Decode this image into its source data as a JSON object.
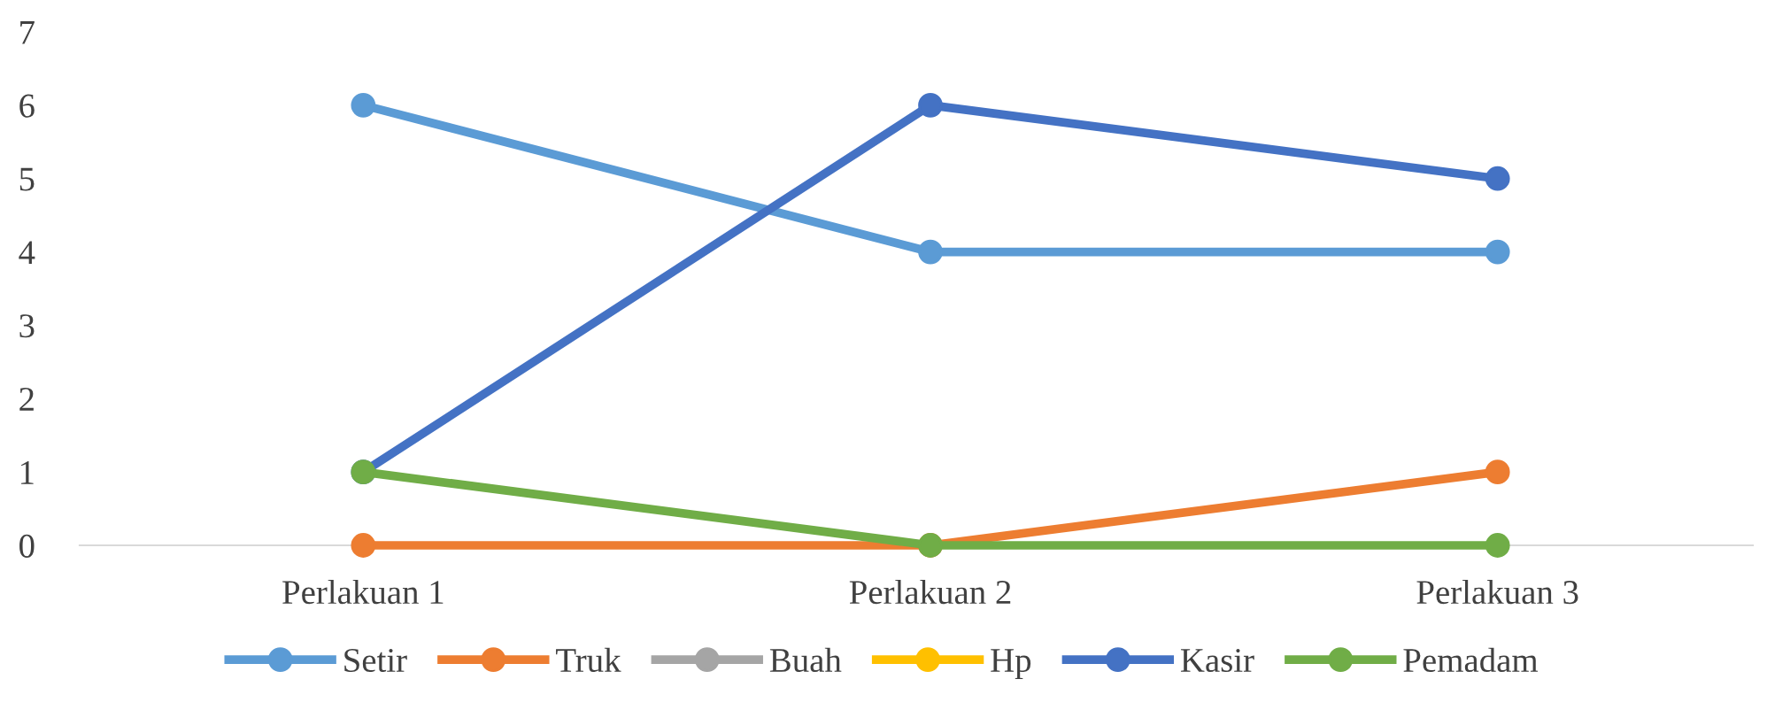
{
  "chart_data": {
    "type": "line",
    "categories": [
      "Perlakuan 1",
      "Perlakuan 2",
      "Perlakuan 3"
    ],
    "series": [
      {
        "name": "Setir",
        "color": "#5b9bd5",
        "values": [
          6,
          4,
          4
        ]
      },
      {
        "name": "Truk",
        "color": "#ed7d31",
        "values": [
          0,
          0,
          1
        ]
      },
      {
        "name": "Buah",
        "color": "#a5a5a5",
        "values": [
          null,
          null,
          null
        ]
      },
      {
        "name": "Hp",
        "color": "#ffc000",
        "values": [
          null,
          null,
          null
        ]
      },
      {
        "name": "Kasir",
        "color": "#4472c4",
        "values": [
          1,
          6,
          5
        ]
      },
      {
        "name": "Pemadam",
        "color": "#70ad47",
        "values": [
          1,
          0,
          0
        ]
      }
    ],
    "ylim": [
      0,
      7
    ],
    "yticks": [
      0,
      1,
      2,
      3,
      4,
      5,
      6,
      7
    ],
    "grid": false,
    "legend": "bottom",
    "marker": "circle",
    "line_style": "solid"
  }
}
